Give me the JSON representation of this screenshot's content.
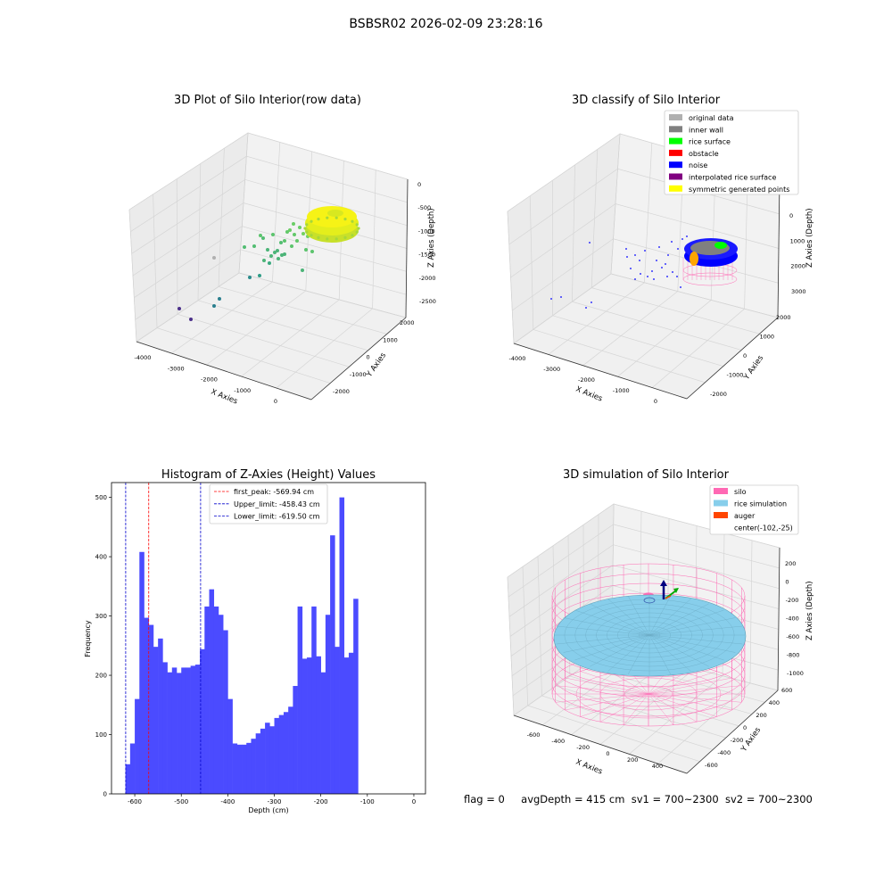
{
  "figure": {
    "suptitle": "BSBSR02 2026-02-09 23:28:16"
  },
  "footer": {
    "flag": "flag = 0",
    "avg_depth": "avgDepth = 415 cm",
    "sv1": "sv1 = 700~2300",
    "sv2": "sv2 = 700~2300"
  },
  "colors": {
    "histogram_bar": "#4b4bff",
    "first_peak_line": "#ff0000",
    "limit_lines": "#0000cc",
    "silo": "#ff69b4",
    "rice_simulation": "#87ceeb",
    "auger": "#ff4500"
  },
  "chart_data": [
    {
      "type": "scatter",
      "panel": "raw",
      "title": "3D Plot of Silo Interior(row data)",
      "xlabel": "X Axies",
      "ylabel": "Y Axies",
      "zlabel": "Z Axies (Depth)",
      "x_ticks": [
        "-4000",
        "-3000",
        "-2000",
        "-1000",
        "0"
      ],
      "y_ticks": [
        "2000",
        "1000",
        "0",
        "-1000",
        "-2000"
      ],
      "z_ticks": [
        "0",
        "-500",
        "-1000",
        "-1500",
        "-2000",
        "-2500"
      ],
      "grid": true
    },
    {
      "type": "scatter",
      "panel": "classify",
      "title": "3D classify of Silo Interior",
      "xlabel": "X Axies",
      "ylabel": "Y Axies",
      "zlabel": "Z Axies (Depth)",
      "x_ticks": [
        "-4000",
        "-3000",
        "-2000",
        "-1000",
        "0"
      ],
      "y_ticks": [
        "2000",
        "1000",
        "0",
        "-1000",
        "-2000"
      ],
      "z_ticks": [
        "0",
        "1000",
        "2000",
        "3000"
      ],
      "legend_position": "top-right",
      "legend": [
        {
          "label": "original data",
          "color": "#b0b0b0"
        },
        {
          "label": "inner wall",
          "color": "#808080"
        },
        {
          "label": "rice surface",
          "color": "#00ff00"
        },
        {
          "label": "obstacle",
          "color": "#ff0000"
        },
        {
          "label": "noise",
          "color": "#0000ff"
        },
        {
          "label": "interpolated rice surface",
          "color": "#800080"
        },
        {
          "label": "symmetric generated points",
          "color": "#ffff00"
        }
      ],
      "grid": true
    },
    {
      "type": "bar",
      "panel": "histogram",
      "title": "Histogram of Z-Axies (Height) Values",
      "xlabel": "Depth (cm)",
      "ylabel": "Frequency",
      "xlim": [
        -650,
        25
      ],
      "ylim": [
        0,
        525
      ],
      "x_ticks": [
        -600,
        -500,
        -400,
        -300,
        -200,
        -100,
        0
      ],
      "y_ticks": [
        0,
        100,
        200,
        300,
        400,
        500
      ],
      "bin_start": -620,
      "bin_width": 10,
      "values": [
        50,
        85,
        160,
        408,
        297,
        285,
        248,
        262,
        222,
        205,
        213,
        204,
        213,
        213,
        216,
        218,
        244,
        316,
        345,
        316,
        302,
        276,
        160,
        85,
        83,
        83,
        86,
        93,
        102,
        110,
        120,
        114,
        128,
        133,
        138,
        147,
        182,
        316,
        228,
        230,
        316,
        232,
        205,
        302,
        436,
        248,
        500,
        230,
        238,
        329
      ],
      "vlines": [
        {
          "label": "first_peak: -569.94 cm",
          "x": -569.94,
          "color": "#ff0000"
        },
        {
          "label": "Upper_limit: -458.43 cm",
          "x": -458.43,
          "color": "#0000cc"
        },
        {
          "label": "Lower_limit: -619.50 cm",
          "x": -619.5,
          "color": "#0000cc"
        }
      ],
      "legend_position": "top-center",
      "grid": false
    },
    {
      "type": "scatter",
      "panel": "simulation",
      "title": "3D simulation of Silo Interior",
      "xlabel": "X Axies",
      "ylabel": "Y Axies",
      "zlabel": "Z Axies (Depth)",
      "x_ticks": [
        "-600",
        "-400",
        "-200",
        "0",
        "200",
        "400"
      ],
      "y_ticks": [
        "600",
        "400",
        "200",
        "0",
        "-200",
        "-400",
        "-600"
      ],
      "z_ticks": [
        "200",
        "0",
        "-200",
        "-400",
        "-600",
        "-800",
        "-1000"
      ],
      "legend_position": "top-right",
      "legend": [
        {
          "label": "silo",
          "color": "#ff69b4"
        },
        {
          "label": "rice simulation",
          "color": "#87ceeb"
        },
        {
          "label": "auger",
          "color": "#ff4500"
        },
        {
          "label": "center(-102,-25)",
          "color": ""
        }
      ],
      "grid": true
    }
  ]
}
